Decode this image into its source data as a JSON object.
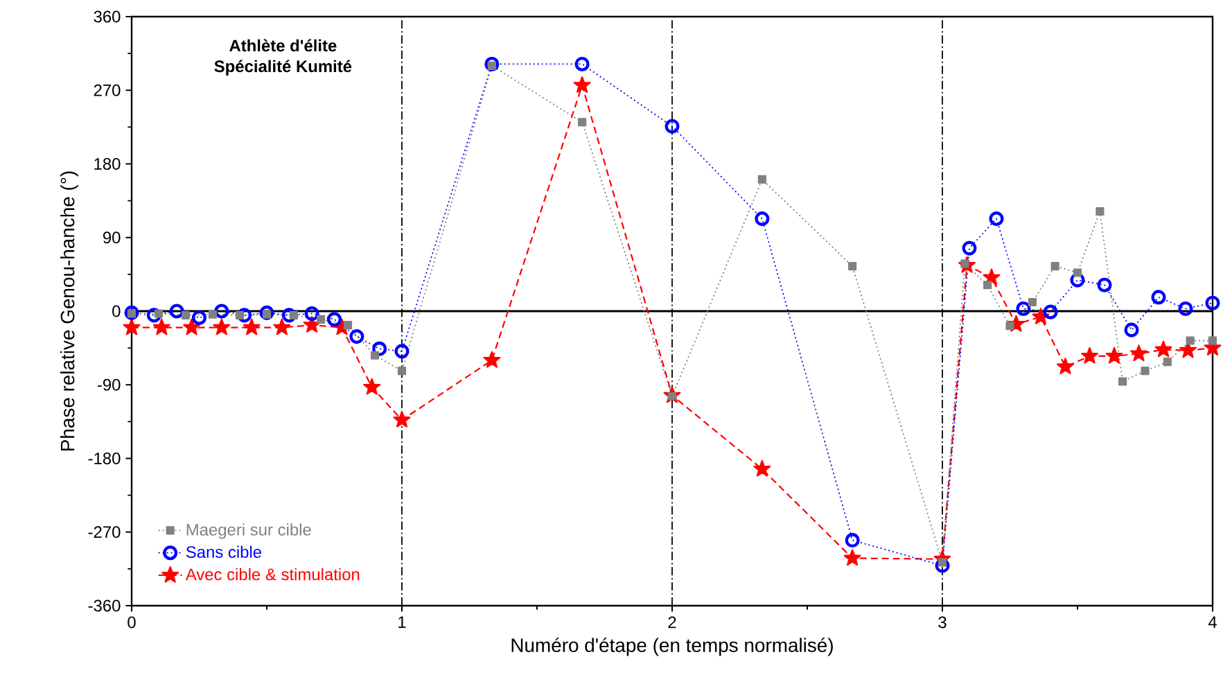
{
  "chart_data": {
    "type": "line",
    "xlabel": "Numéro d'étape (en temps normalisé)",
    "ylabel": "Phase relative Genou-hanche (°)",
    "annotations": [
      "**Athlète d'élite**",
      "**Spécialité Kumité**"
    ],
    "xlim": [
      0,
      4
    ],
    "xticks": [
      0,
      1,
      2,
      3,
      4
    ],
    "ylim": [
      -360,
      360
    ],
    "yticks": [
      -360,
      -270,
      -180,
      -90,
      0,
      90,
      180,
      270,
      360
    ],
    "legend": "bottom left",
    "ref_lines": [
      {
        "axis": "x",
        "value": 1,
        "line_style": "dashdot",
        "color": "#000000"
      },
      {
        "axis": "x",
        "value": 2,
        "line_style": "dashdot",
        "color": "#000000"
      },
      {
        "axis": "x",
        "value": 3,
        "line_style": "dashdot",
        "color": "#000000"
      },
      {
        "axis": "y",
        "value": 0,
        "line_style": "solid",
        "color": "#000000"
      }
    ],
    "series": [
      {
        "name": "Maegeri sur cible",
        "color": "#808080",
        "marker": "square",
        "line_style": "dotted",
        "x": [
          0,
          0.1,
          0.2,
          0.3,
          0.4,
          0.5,
          0.6,
          0.7,
          0.8,
          0.9,
          1.0,
          1.333,
          1.667,
          2.0,
          2.333,
          2.667,
          3.0,
          3.083,
          3.167,
          3.25,
          3.333,
          3.417,
          3.5,
          3.583,
          3.667,
          3.75,
          3.833,
          3.917,
          4.0
        ],
        "values": [
          -3,
          -3,
          -5,
          -4,
          -5,
          -4,
          -5,
          -10,
          -17,
          -54,
          -73,
          300,
          231,
          -104,
          161,
          55,
          -307,
          58,
          32,
          -18,
          11,
          55,
          47,
          122,
          -86,
          -73,
          -62,
          -36,
          -36
        ]
      },
      {
        "name": "Sans cible",
        "color": "#0000ff",
        "marker": "circle",
        "line_style": "dotted",
        "x": [
          0,
          0.083,
          0.167,
          0.25,
          0.333,
          0.417,
          0.5,
          0.583,
          0.667,
          0.75,
          0.833,
          0.917,
          1.0,
          1.333,
          1.667,
          2.0,
          2.333,
          2.667,
          3.0,
          3.1,
          3.2,
          3.3,
          3.4,
          3.5,
          3.6,
          3.7,
          3.8,
          3.9,
          4.0
        ],
        "values": [
          -2,
          -5,
          0,
          -8,
          0,
          -5,
          -2,
          -5,
          -3,
          -10,
          -31,
          -46,
          -49,
          302,
          302,
          226,
          113,
          -280,
          -311,
          77,
          113,
          3,
          -1,
          38,
          32,
          -23,
          17,
          3,
          10
        ]
      },
      {
        "name": "Avec cible & stimulation",
        "color": "#ff0000",
        "marker": "star",
        "line_style": "dashed",
        "x": [
          0,
          0.111,
          0.222,
          0.333,
          0.444,
          0.556,
          0.667,
          0.778,
          0.889,
          1.0,
          1.333,
          1.667,
          2.0,
          2.333,
          2.667,
          3.0,
          3.091,
          3.182,
          3.273,
          3.364,
          3.455,
          3.545,
          3.636,
          3.727,
          3.818,
          3.909,
          4.0
        ],
        "values": [
          -20,
          -20,
          -20,
          -20,
          -20,
          -20,
          -17,
          -20,
          -93,
          -133,
          -60,
          276,
          -103,
          -193,
          -302,
          -303,
          56,
          41,
          -16,
          -7,
          -68,
          -55,
          -55,
          -52,
          -47,
          -48,
          -45
        ]
      }
    ]
  }
}
